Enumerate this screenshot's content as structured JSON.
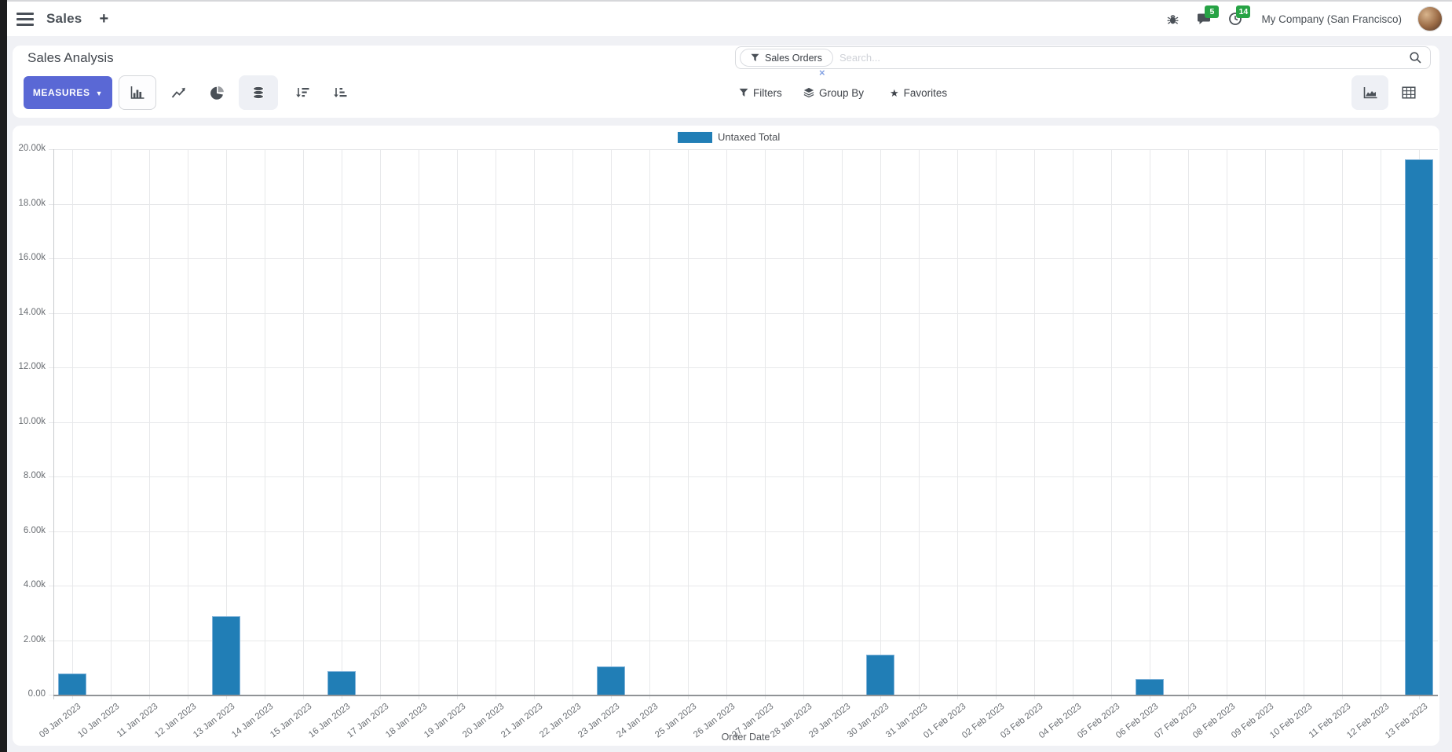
{
  "navbar": {
    "app_name": "Sales",
    "plus": "+",
    "messages_badge": "5",
    "activities_badge": "14",
    "company": "My Company (San Francisco)"
  },
  "control_panel": {
    "title": "Sales Analysis",
    "measures_label": "MEASURES",
    "caret": "▼"
  },
  "search": {
    "facet_label": "Sales Orders",
    "facet_remove": "×",
    "placeholder": "Search..."
  },
  "filter_menu": {
    "filters": "Filters",
    "group_by": "Group By",
    "favorites": "Favorites",
    "star": "★"
  },
  "chart_data": {
    "type": "bar",
    "title": "",
    "xlabel": "Order Date",
    "ylabel": "",
    "ylim": [
      0,
      20000
    ],
    "ytick_step": 2000,
    "ytick_labels": [
      "0.00",
      "2.00k",
      "4.00k",
      "6.00k",
      "8.00k",
      "10.00k",
      "12.00k",
      "14.00k",
      "16.00k",
      "18.00k",
      "20.00k"
    ],
    "grid": true,
    "legend_position": "top",
    "bar_color": "#217eb6",
    "categories": [
      "09 Jan 2023",
      "10 Jan 2023",
      "11 Jan 2023",
      "12 Jan 2023",
      "13 Jan 2023",
      "14 Jan 2023",
      "15 Jan 2023",
      "16 Jan 2023",
      "17 Jan 2023",
      "18 Jan 2023",
      "19 Jan 2023",
      "20 Jan 2023",
      "21 Jan 2023",
      "22 Jan 2023",
      "23 Jan 2023",
      "24 Jan 2023",
      "25 Jan 2023",
      "26 Jan 2023",
      "27 Jan 2023",
      "28 Jan 2023",
      "29 Jan 2023",
      "30 Jan 2023",
      "31 Jan 2023",
      "01 Feb 2023",
      "02 Feb 2023",
      "03 Feb 2023",
      "04 Feb 2023",
      "05 Feb 2023",
      "06 Feb 2023",
      "07 Feb 2023",
      "08 Feb 2023",
      "09 Feb 2023",
      "10 Feb 2023",
      "11 Feb 2023",
      "12 Feb 2023",
      "13 Feb 2023"
    ],
    "series": [
      {
        "name": "Untaxed Total",
        "color": "#217eb6",
        "values": [
          780,
          0,
          0,
          0,
          2880,
          0,
          0,
          860,
          0,
          0,
          0,
          0,
          0,
          0,
          1040,
          0,
          0,
          0,
          0,
          0,
          0,
          1470,
          0,
          0,
          0,
          0,
          0,
          0,
          580,
          0,
          0,
          0,
          0,
          0,
          0,
          19630
        ]
      }
    ]
  }
}
